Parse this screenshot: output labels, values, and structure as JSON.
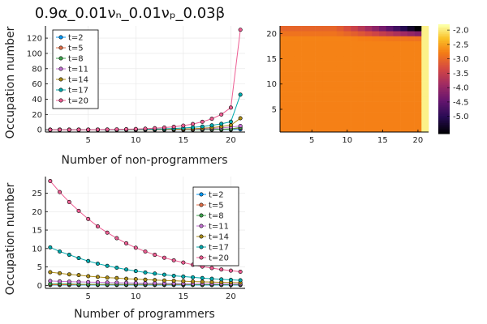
{
  "chart_data": [
    {
      "type": "line",
      "title": "0.9α_0.01νₙ_0.01νₚ_0.03β",
      "xlabel": "Number of non-programmers",
      "ylabel": "Occupation number",
      "xlim": [
        0.5,
        21.5
      ],
      "ylim": [
        -3,
        136
      ],
      "xticks": [
        5,
        10,
        15,
        20
      ],
      "yticks": [
        0,
        20,
        40,
        60,
        80,
        100,
        120
      ],
      "grid": true,
      "legend_position": "top-left",
      "x": [
        1,
        2,
        3,
        4,
        5,
        6,
        7,
        8,
        9,
        10,
        11,
        12,
        13,
        14,
        15,
        16,
        17,
        18,
        19,
        20,
        21
      ],
      "series": [
        {
          "name": "t=2",
          "color": "#009AFA",
          "values": [
            0,
            0,
            0,
            0,
            0,
            0,
            0,
            0,
            0,
            0,
            0,
            0,
            0,
            0,
            0,
            0,
            0,
            0,
            0,
            0,
            0.5
          ]
        },
        {
          "name": "t=5",
          "color": "#E36F47",
          "values": [
            0,
            0,
            0,
            0,
            0,
            0,
            0,
            0,
            0,
            0,
            0,
            0,
            0,
            0,
            0,
            0,
            0.1,
            0.2,
            0.4,
            0.7,
            2
          ]
        },
        {
          "name": "t=8",
          "color": "#3EA44E",
          "values": [
            0,
            0,
            0,
            0,
            0,
            0,
            0,
            0,
            0,
            0,
            0,
            0,
            0,
            0,
            0,
            0.1,
            0.2,
            0.4,
            0.7,
            1.3,
            3
          ]
        },
        {
          "name": "t=11",
          "color": "#C371D2",
          "values": [
            0,
            0,
            0,
            0,
            0,
            0,
            0,
            0,
            0,
            0,
            0.1,
            0.1,
            0.2,
            0.3,
            0.5,
            0.7,
            1.1,
            1.6,
            2.4,
            3.5,
            5
          ]
        },
        {
          "name": "t=14",
          "color": "#AC8D18",
          "values": [
            0,
            0,
            0,
            0,
            0,
            0,
            0,
            0,
            0.1,
            0.1,
            0.2,
            0.3,
            0.5,
            0.7,
            1,
            1.4,
            2,
            2.9,
            4.2,
            6,
            15
          ]
        },
        {
          "name": "t=17",
          "color": "#00A9AD",
          "values": [
            0,
            0,
            0,
            0,
            0,
            0.1,
            0.1,
            0.2,
            0.3,
            0.4,
            0.6,
            0.9,
            1.2,
            1.7,
            2.3,
            3.1,
            4.2,
            5.7,
            7.7,
            10.5,
            46
          ]
        },
        {
          "name": "t=20",
          "color": "#ED5E93",
          "values": [
            0,
            0,
            0,
            0.1,
            0.1,
            0.2,
            0.3,
            0.5,
            0.7,
            1,
            1.4,
            2,
            2.8,
            3.9,
            5.4,
            7.5,
            10.4,
            14.4,
            20,
            29,
            131
          ]
        }
      ]
    },
    {
      "type": "heatmap",
      "xlim": [
        0.5,
        21.5
      ],
      "ylim": [
        0.5,
        21.5
      ],
      "xticks": [
        5,
        10,
        15,
        20
      ],
      "yticks": [
        5,
        10,
        15,
        20
      ],
      "colorbar": {
        "min": -5.6,
        "max": -1.8,
        "ticks": [
          -5.0,
          -4.5,
          -4.0,
          -3.5,
          -3.0,
          -2.5,
          -2.0
        ],
        "tick_labels": [
          "-5.0",
          "-4.5",
          "-4.0",
          "-3.5",
          "-3.0",
          "-2.5",
          "-2.0"
        ],
        "colormap": "inferno"
      },
      "description_of_values": "log occupation; mostly about -2.7 with dark (low) region at top rows near x 12-20 and bright column at x=21"
    },
    {
      "type": "line",
      "xlabel": "Number of programmers",
      "ylabel": "Occupation number",
      "xlim": [
        0.5,
        21.5
      ],
      "ylim": [
        -0.8,
        29.5
      ],
      "xticks": [
        5,
        10,
        15,
        20
      ],
      "yticks": [
        0,
        5,
        10,
        15,
        20,
        25
      ],
      "grid": true,
      "legend_position": "top-right",
      "x": [
        1,
        2,
        3,
        4,
        5,
        6,
        7,
        8,
        9,
        10,
        11,
        12,
        13,
        14,
        15,
        16,
        17,
        18,
        19,
        20,
        21
      ],
      "series": [
        {
          "name": "t=2",
          "color": "#009AFA",
          "values": [
            0.1,
            0.1,
            0.1,
            0.1,
            0.1,
            0.1,
            0.1,
            0.1,
            0.1,
            0.1,
            0.1,
            0.1,
            0.1,
            0.1,
            0.1,
            0.1,
            0.1,
            0.1,
            0.1,
            0.1,
            0.1
          ]
        },
        {
          "name": "t=5",
          "color": "#E36F47",
          "values": [
            0.2,
            0.2,
            0.2,
            0.2,
            0.2,
            0.2,
            0.2,
            0.2,
            0.2,
            0.2,
            0.2,
            0.2,
            0.2,
            0.2,
            0.2,
            0.2,
            0.2,
            0.2,
            0.2,
            0.2,
            0.2
          ]
        },
        {
          "name": "t=8",
          "color": "#3EA44E",
          "values": [
            0.4,
            0.4,
            0.4,
            0.3,
            0.3,
            0.3,
            0.3,
            0.3,
            0.3,
            0.3,
            0.3,
            0.3,
            0.3,
            0.3,
            0.3,
            0.2,
            0.2,
            0.2,
            0.2,
            0.2,
            0.2
          ]
        },
        {
          "name": "t=11",
          "color": "#C371D2",
          "values": [
            1.2,
            1.1,
            1.0,
            0.95,
            0.9,
            0.85,
            0.8,
            0.75,
            0.7,
            0.65,
            0.6,
            0.58,
            0.55,
            0.52,
            0.5,
            0.47,
            0.45,
            0.42,
            0.4,
            0.38,
            0.36
          ]
        },
        {
          "name": "t=14",
          "color": "#AC8D18",
          "values": [
            3.6,
            3.3,
            3.0,
            2.8,
            2.5,
            2.3,
            2.1,
            2.0,
            1.8,
            1.7,
            1.55,
            1.45,
            1.35,
            1.25,
            1.15,
            1.05,
            0.98,
            0.9,
            0.85,
            0.8,
            0.75
          ]
        },
        {
          "name": "t=17",
          "color": "#00A9AD",
          "values": [
            10.3,
            9.2,
            8.3,
            7.4,
            6.6,
            5.9,
            5.3,
            4.8,
            4.3,
            3.9,
            3.5,
            3.2,
            2.9,
            2.6,
            2.4,
            2.2,
            2.0,
            1.8,
            1.65,
            1.5,
            1.4
          ]
        },
        {
          "name": "t=20",
          "color": "#ED5E93",
          "values": [
            28.3,
            25.3,
            22.6,
            20.2,
            18.0,
            16.0,
            14.3,
            12.8,
            11.4,
            10.2,
            9.2,
            8.3,
            7.5,
            6.8,
            6.2,
            5.6,
            5.1,
            4.7,
            4.3,
            4.0,
            3.7
          ]
        }
      ]
    }
  ]
}
